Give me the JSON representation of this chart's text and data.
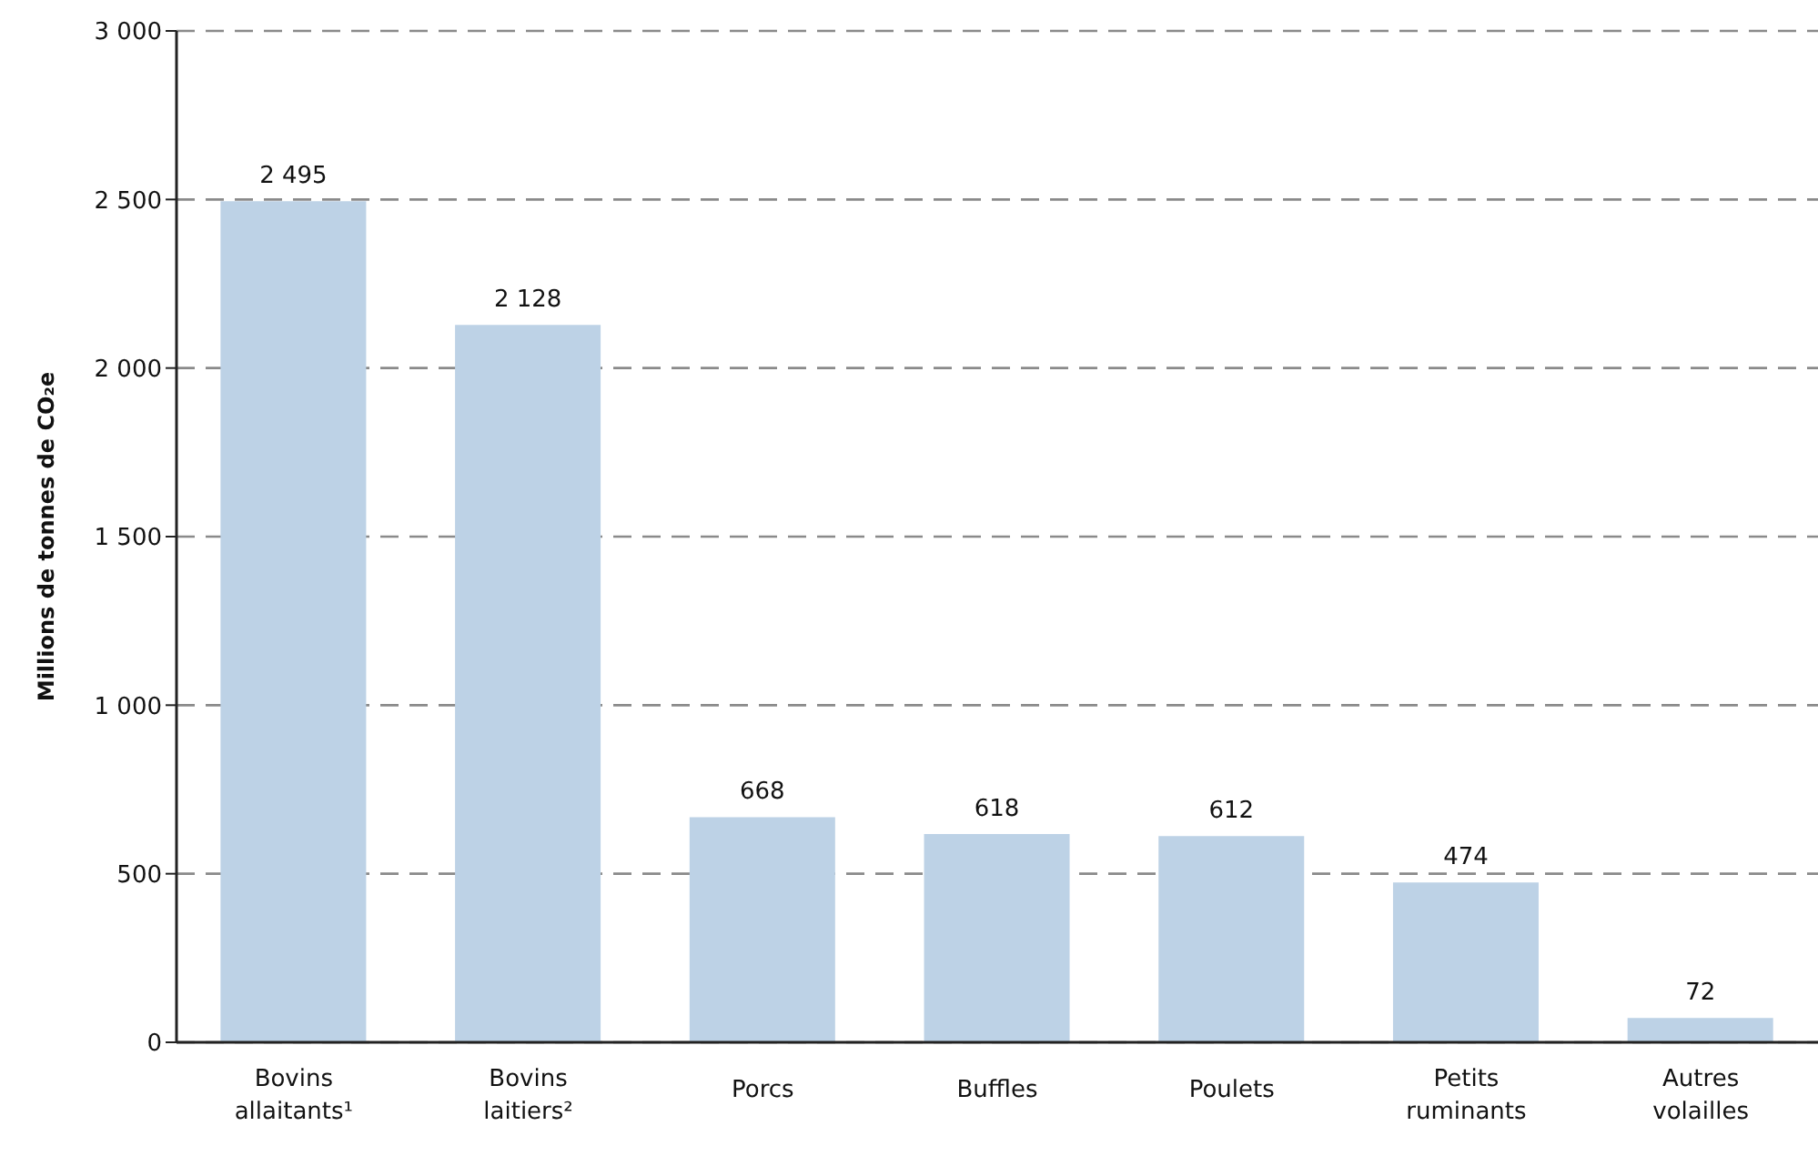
{
  "chart_data": {
    "type": "bar",
    "ylabel": "Millions de tonnes de CO₂e",
    "categories": [
      "Bovins allaitants¹",
      "Bovins laitiers²",
      "Porcs",
      "Buffles",
      "Poulets",
      "Petits ruminants",
      "Autres volailles"
    ],
    "values": [
      2495,
      2128,
      668,
      618,
      612,
      474,
      72
    ],
    "value_labels": [
      "2 495",
      "2 128",
      "668",
      "618",
      "612",
      "474",
      "72"
    ],
    "color": "#bdd2e6",
    "ylim": [
      0,
      3000
    ],
    "yticks": [
      0,
      500,
      {
        "value": 1000,
        "label": "1 000"
      },
      {
        "value": 1500,
        "label": "1 500"
      },
      {
        "value": 2000,
        "label": "2 000"
      },
      {
        "value": 2500,
        "label": "2 500"
      },
      {
        "value": 3000,
        "label": "3 000"
      }
    ],
    "grid": "y"
  }
}
